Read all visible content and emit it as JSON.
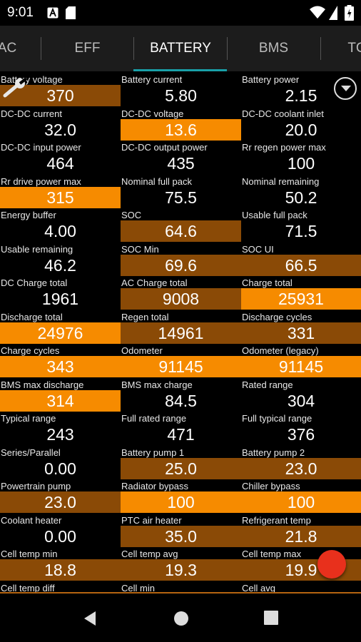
{
  "status_bar": {
    "time": "9:01"
  },
  "tabs": [
    {
      "label": "AC"
    },
    {
      "label": "EFF"
    },
    {
      "label": "BATTERY"
    },
    {
      "label": "BMS"
    },
    {
      "label": "TC"
    }
  ],
  "colors": {
    "bright": "#f68b00",
    "dark": "#8a4a06",
    "none": "#000000",
    "accent": "#19a0a8"
  },
  "grid": [
    [
      {
        "label": "Battery voltage",
        "value": "370",
        "color": "dark"
      },
      {
        "label": "Battery current",
        "value": "5.80",
        "color": "none"
      },
      {
        "label": "Battery power",
        "value": "2.15",
        "color": "none"
      }
    ],
    [
      {
        "label": "DC-DC current",
        "value": "32.0",
        "color": "none"
      },
      {
        "label": "DC-DC voltage",
        "value": "13.6",
        "color": "bright"
      },
      {
        "label": "DC-DC coolant inlet",
        "value": "20.0",
        "color": "none"
      }
    ],
    [
      {
        "label": "DC-DC input power",
        "value": "464",
        "color": "none"
      },
      {
        "label": "DC-DC output power",
        "value": "435",
        "color": "none"
      },
      {
        "label": "Rr regen power max",
        "value": "100",
        "color": "none"
      }
    ],
    [
      {
        "label": "Rr drive power max",
        "value": "315",
        "color": "bright"
      },
      {
        "label": "Nominal full pack",
        "value": "75.5",
        "color": "none"
      },
      {
        "label": "Nominal remaining",
        "value": "50.2",
        "color": "none"
      }
    ],
    [
      {
        "label": "Energy buffer",
        "value": "4.00",
        "color": "none"
      },
      {
        "label": "SOC",
        "value": "64.6",
        "color": "dark"
      },
      {
        "label": "Usable full pack",
        "value": "71.5",
        "color": "none"
      }
    ],
    [
      {
        "label": "Usable remaining",
        "value": "46.2",
        "color": "none"
      },
      {
        "label": "SOC Min",
        "value": "69.6",
        "color": "dark"
      },
      {
        "label": "SOC UI",
        "value": "66.5",
        "color": "dark"
      }
    ],
    [
      {
        "label": "DC Charge total",
        "value": "1961",
        "color": "none"
      },
      {
        "label": "AC Charge total",
        "value": "9008",
        "color": "dark"
      },
      {
        "label": "Charge total",
        "value": "25931",
        "color": "bright"
      }
    ],
    [
      {
        "label": "Discharge total",
        "value": "24976",
        "color": "bright"
      },
      {
        "label": "Regen total",
        "value": "14961",
        "color": "dark"
      },
      {
        "label": "Discharge cycles",
        "value": "331",
        "color": "dark"
      }
    ],
    [
      {
        "label": "Charge cycles",
        "value": "343",
        "color": "bright"
      },
      {
        "label": "Odometer",
        "value": "91145",
        "color": "bright"
      },
      {
        "label": "Odometer (legacy)",
        "value": "91145",
        "color": "bright"
      }
    ],
    [
      {
        "label": "BMS max discharge",
        "value": "314",
        "color": "bright"
      },
      {
        "label": "BMS max charge",
        "value": "84.5",
        "color": "none"
      },
      {
        "label": "Rated range",
        "value": "304",
        "color": "none"
      }
    ],
    [
      {
        "label": "Typical range",
        "value": "243",
        "color": "none"
      },
      {
        "label": "Full rated range",
        "value": "471",
        "color": "none"
      },
      {
        "label": "Full typical range",
        "value": "376",
        "color": "none"
      }
    ],
    [
      {
        "label": "Series/Parallel",
        "value": "0.00",
        "color": "none"
      },
      {
        "label": "Battery pump 1",
        "value": "25.0",
        "color": "dark"
      },
      {
        "label": "Battery pump 2",
        "value": "23.0",
        "color": "dark"
      }
    ],
    [
      {
        "label": "Powertrain pump",
        "value": "23.0",
        "color": "dark"
      },
      {
        "label": "Radiator bypass",
        "value": "100",
        "color": "bright"
      },
      {
        "label": "Chiller bypass",
        "value": "100",
        "color": "bright"
      }
    ],
    [
      {
        "label": "Coolant heater",
        "value": "0.00",
        "color": "none"
      },
      {
        "label": "PTC air heater",
        "value": "35.0",
        "color": "dark"
      },
      {
        "label": "Refrigerant temp",
        "value": "21.8",
        "color": "dark"
      }
    ],
    [
      {
        "label": "Cell temp min",
        "value": "18.8",
        "color": "dark"
      },
      {
        "label": "Cell temp avg",
        "value": "19.3",
        "color": "dark"
      },
      {
        "label": "Cell temp max",
        "value": "19.9",
        "color": "dark"
      }
    ],
    [
      {
        "label": "Cell temp diff",
        "value": "",
        "color": "none"
      },
      {
        "label": "Cell min",
        "value": "",
        "color": "none"
      },
      {
        "label": "Cell avg",
        "value": "",
        "color": "none"
      }
    ]
  ],
  "icons": {
    "wifi": "wifi-icon",
    "battery": "battery-icon",
    "wrench": "wrench-icon",
    "dropdown": "chevron-down-icon",
    "fab": "record-icon",
    "back": "nav-back-icon",
    "home": "nav-home-icon",
    "recents": "nav-recents-icon"
  }
}
